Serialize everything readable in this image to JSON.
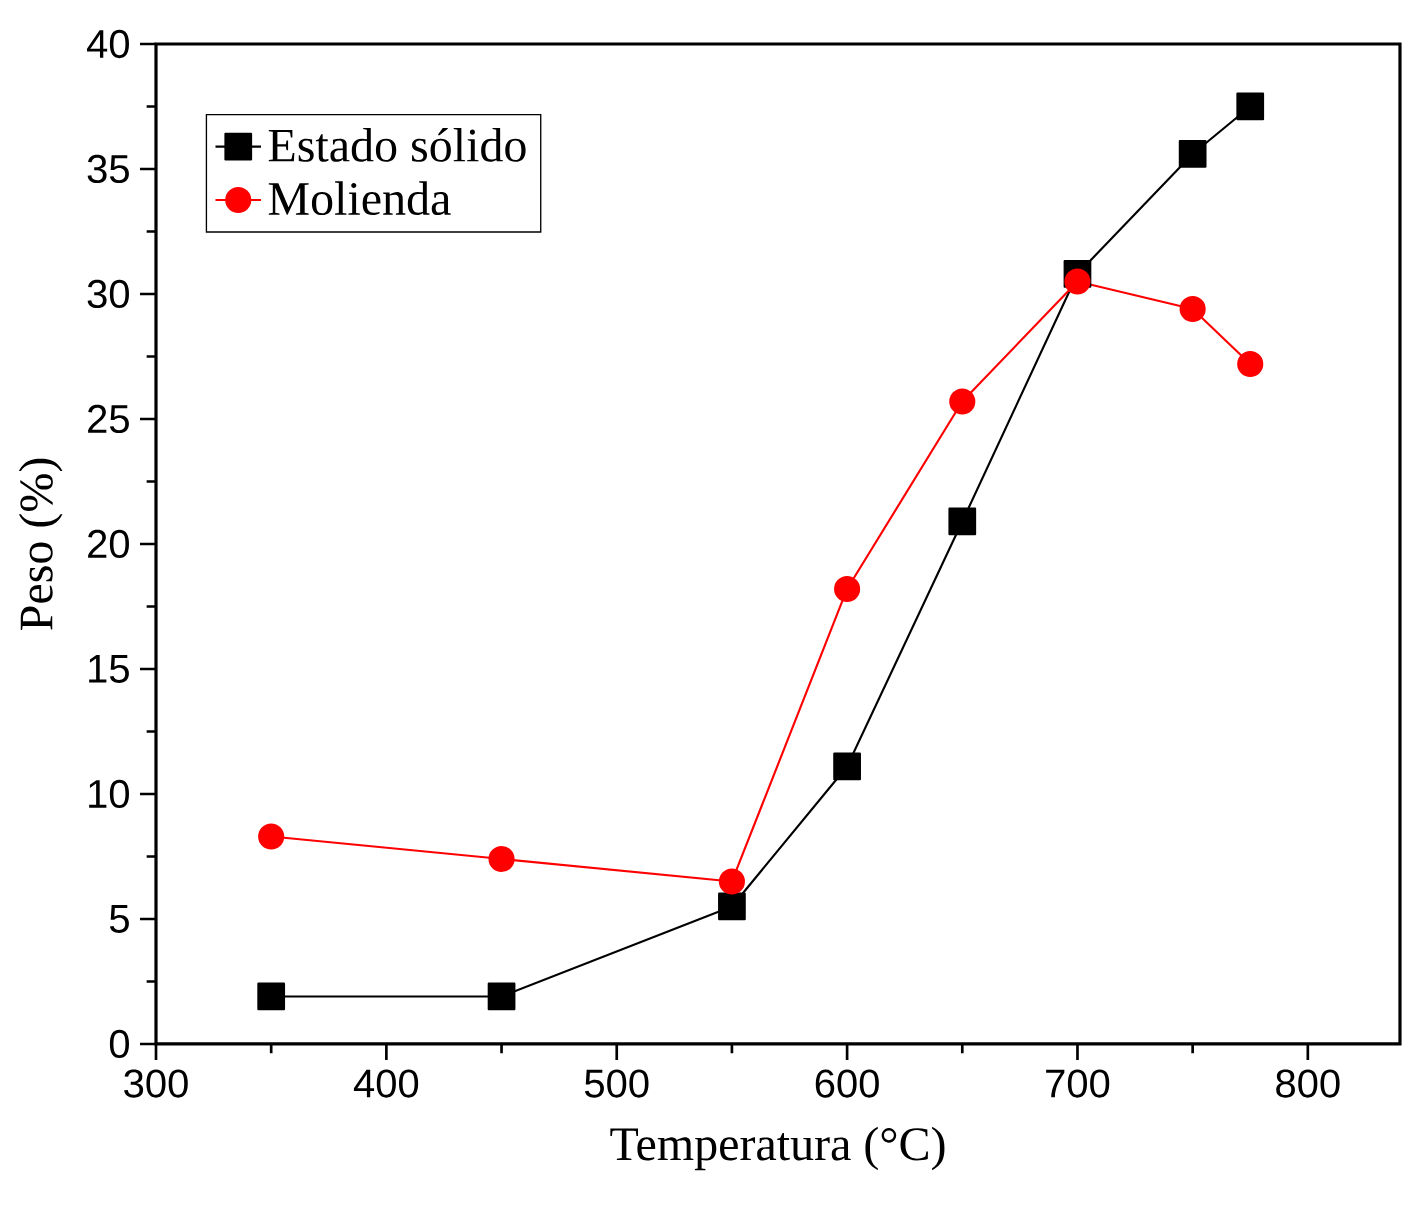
{
  "chart_data": {
    "type": "line",
    "xlabel": "Temperatura (°C)",
    "ylabel": "Peso (%)",
    "xlim": [
      300,
      840
    ],
    "xticks": [
      300,
      400,
      500,
      600,
      700,
      800
    ],
    "ylim": [
      0,
      40
    ],
    "yticks": [
      0,
      5,
      10,
      15,
      20,
      25,
      30,
      35,
      40
    ],
    "legend": "top left",
    "grid": false,
    "line_style": "solid",
    "series": [
      {
        "name": "Estado sólido",
        "color": "#000000",
        "marker": "square",
        "x": [
          350,
          450,
          550,
          600,
          650,
          700,
          750,
          775
        ],
        "values": [
          1.9,
          1.9,
          5.5,
          11.1,
          20.9,
          30.8,
          35.6,
          37.5
        ]
      },
      {
        "name": "Molienda",
        "color": "#ff0000",
        "marker": "circle",
        "x": [
          350,
          450,
          550,
          600,
          650,
          700,
          750,
          775
        ],
        "values": [
          8.3,
          7.4,
          6.5,
          18.2,
          25.7,
          30.5,
          29.4,
          27.2
        ]
      }
    ]
  }
}
